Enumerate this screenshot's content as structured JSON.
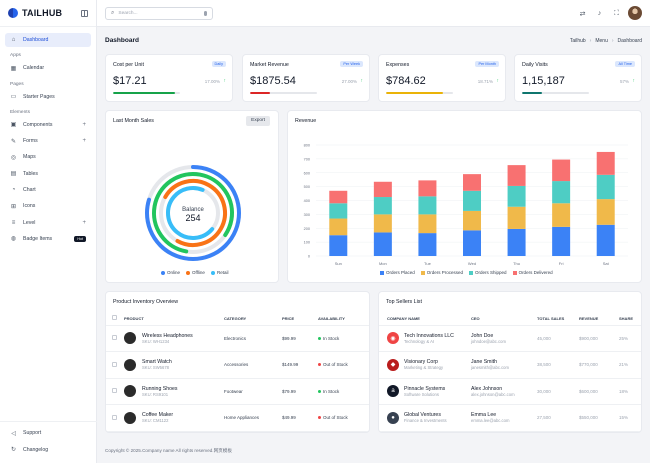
{
  "brand": {
    "name": "TAILHUB"
  },
  "search": {
    "placeholder": "Search..."
  },
  "sidebar": {
    "dashboard": "Dashboard",
    "sections": {
      "apps": "Apps",
      "pages": "Pages",
      "elements": "Elements"
    },
    "calendar": "Calendar",
    "starter": "Starter Pages",
    "elements": [
      "Components",
      "Forms",
      "Maps",
      "Tables",
      "Chart",
      "Icons",
      "Level",
      "Badge Items"
    ],
    "hot_badge": "Hot",
    "support": "Support",
    "changelog": "Changelog"
  },
  "page": {
    "title": "Dashboard"
  },
  "breadcrumb": [
    "Tailhub",
    "Menu",
    "Dashboard"
  ],
  "stats": [
    {
      "title": "Cost per Unit",
      "badge": "Daily",
      "value": "$17.21",
      "pct": "17.00%",
      "progress": 0.92,
      "color": "#16a34a"
    },
    {
      "title": "Market Revenue",
      "badge": "Per Week",
      "value": "$1875.54",
      "pct": "27.00%",
      "progress": 0.3,
      "color": "#dc2626"
    },
    {
      "title": "Expenses",
      "badge": "Per Month",
      "value": "$784.62",
      "pct": "18.71%",
      "progress": 0.85,
      "color": "#eab308"
    },
    {
      "title": "Daily Visits",
      "badge": "All Time",
      "value": "1,15,187",
      "pct": "57%",
      "progress": 0.3,
      "color": "#0f766e"
    }
  ],
  "sales": {
    "title": "Last Month Sales",
    "export": "Export",
    "center_label": "Balance",
    "center_value": "254",
    "legend": [
      "Online",
      "Offline",
      "Retail"
    ]
  },
  "chart_data": {
    "type": "bar",
    "title": "Revenue",
    "stacked": true,
    "categories": [
      "Sun",
      "Mon",
      "Tue",
      "Wed",
      "Thu",
      "Fri",
      "Sat"
    ],
    "series": [
      {
        "name": "Orders Placed",
        "color": "#3b82f6",
        "values": [
          150,
          170,
          165,
          185,
          195,
          210,
          225
        ]
      },
      {
        "name": "Orders Processed",
        "color": "#f0b94a",
        "values": [
          120,
          130,
          135,
          140,
          160,
          170,
          185
        ]
      },
      {
        "name": "Orders Shipped",
        "color": "#4ecdc4",
        "values": [
          110,
          125,
          130,
          145,
          150,
          160,
          175
        ]
      },
      {
        "name": "Orders Delivered",
        "color": "#f87171",
        "values": [
          90,
          110,
          115,
          120,
          150,
          155,
          165
        ]
      }
    ],
    "yticks": [
      0,
      100,
      200,
      300,
      400,
      500,
      600,
      700,
      800
    ],
    "ylim": [
      0,
      800
    ]
  },
  "inventory": {
    "title": "Product Inventory Overview",
    "columns": [
      "PRODUCT",
      "CATEGORY",
      "PRICE",
      "AVAILABILITY"
    ],
    "rows": [
      {
        "name": "Wireless Headphones",
        "sku": "SKU: WH1234",
        "category": "Electronics",
        "price": "$99.99",
        "availability": "In Stock",
        "color": "#22c55e"
      },
      {
        "name": "Smart Watch",
        "sku": "SKU: SW5678",
        "category": "Accessories",
        "price": "$149.99",
        "availability": "Out of Stock",
        "color": "#ef4444"
      },
      {
        "name": "Running Shoes",
        "sku": "SKU: RS9101",
        "category": "Footwear",
        "price": "$79.99",
        "availability": "In Stock",
        "color": "#22c55e"
      },
      {
        "name": "Coffee Maker",
        "sku": "SKU: CM1122",
        "category": "Home Appliances",
        "price": "$49.99",
        "availability": "Out of Stock",
        "color": "#ef4444"
      }
    ]
  },
  "sellers": {
    "title": "Top Sellers List",
    "columns": [
      "COMPANY NAME",
      "CEO",
      "TOTAL SALES",
      "REVENUE",
      "SHARE"
    ],
    "rows": [
      {
        "company": "Tech Innovations LLC",
        "sector": "Technology & AI",
        "ceo": "John Doe",
        "email": "johndoe@abc.com",
        "sales": "45,000",
        "revenue": "$900,000",
        "share": "25%",
        "logo_color": "#ef4444",
        "logo_glyph": "◉"
      },
      {
        "company": "Visionary Corp",
        "sector": "Marketing & Strategy",
        "ceo": "Jane Smith",
        "email": "janesmith@abc.com",
        "sales": "38,500",
        "revenue": "$770,000",
        "share": "21%",
        "logo_color": "#b91c1c",
        "logo_glyph": "◆"
      },
      {
        "company": "Pinnacle Systems",
        "sector": "Software Solutions",
        "ceo": "Alex Johnson",
        "email": "alex.johnson@abc.com",
        "sales": "30,000",
        "revenue": "$600,000",
        "share": "18%",
        "logo_color": "#111827",
        "logo_glyph": "a"
      },
      {
        "company": "Global Ventures",
        "sector": "Finance & Investments",
        "ceo": "Emma Lee",
        "email": "emma.lee@abc.com",
        "sales": "27,500",
        "revenue": "$550,000",
        "share": "15%",
        "logo_color": "#374151",
        "logo_glyph": "●"
      }
    ]
  },
  "footer": {
    "text": "Copyright © 2025.Company name All rights reserved.网页模板"
  }
}
